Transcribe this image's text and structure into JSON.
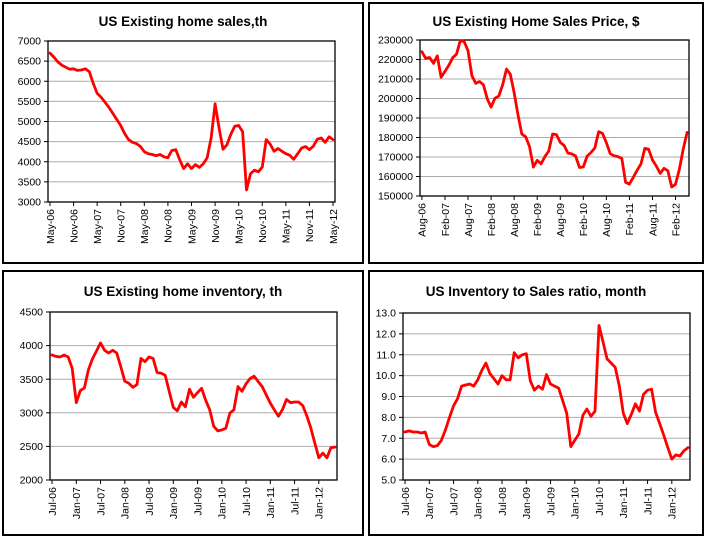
{
  "colors": {
    "series_line": "#ff0000",
    "gridline": "#ababab",
    "axis_frame": "#000000",
    "label_text": "#000000",
    "background": "#ffffff"
  },
  "chart_data": [
    {
      "id": "existing-home-sales",
      "type": "line",
      "title": "US Existing home sales,th",
      "frequency": "monthly",
      "x_range": [
        "May-06",
        "May-12"
      ],
      "x_tick_labels": [
        "May-06",
        "Nov-06",
        "May-07",
        "Nov-07",
        "May-08",
        "Nov-08",
        "May-09",
        "Nov-09",
        "May-10",
        "Nov-10",
        "May-11",
        "Nov-11",
        "May-12"
      ],
      "y_tick_labels": [
        "7000",
        "6500",
        "6000",
        "5500",
        "5000",
        "4500",
        "4000",
        "3500",
        "3000"
      ],
      "ylim": [
        3000,
        7000
      ],
      "legend": "none",
      "grid": "horizontal",
      "values": [
        6700,
        6600,
        6480,
        6400,
        6350,
        6300,
        6310,
        6270,
        6280,
        6310,
        6240,
        5950,
        5700,
        5600,
        5480,
        5350,
        5200,
        5050,
        4900,
        4700,
        4550,
        4480,
        4450,
        4380,
        4250,
        4200,
        4180,
        4150,
        4180,
        4120,
        4100,
        4280,
        4300,
        4050,
        3830,
        3950,
        3830,
        3930,
        3860,
        3950,
        4100,
        4600,
        5440,
        4850,
        4310,
        4420,
        4680,
        4880,
        4900,
        4750,
        3300,
        3700,
        3790,
        3750,
        3870,
        4550,
        4440,
        4260,
        4330,
        4260,
        4200,
        4160,
        4060,
        4200,
        4340,
        4380,
        4300,
        4390,
        4560,
        4590,
        4480,
        4620,
        4550
      ]
    },
    {
      "id": "existing-home-sales-price",
      "type": "line",
      "title": "US Existing Home Sales Price, $",
      "frequency": "monthly",
      "x_range": [
        "Aug-06",
        "May-12"
      ],
      "x_tick_labels": [
        "Aug-06",
        "Feb-07",
        "Aug-07",
        "Feb-08",
        "Aug-08",
        "Feb-09",
        "Aug-09",
        "Feb-10",
        "Aug-10",
        "Feb-11",
        "Aug-11",
        "Feb-12"
      ],
      "y_tick_labels": [
        "230000",
        "220000",
        "210000",
        "200000",
        "190000",
        "180000",
        "170000",
        "160000",
        "150000"
      ],
      "ylim": [
        150000,
        230000
      ],
      "legend": "none",
      "grid": "horizontal",
      "values": [
        224000,
        220500,
        221000,
        218000,
        221900,
        210900,
        213900,
        217000,
        220900,
        222700,
        229700,
        229200,
        224500,
        211700,
        207800,
        208700,
        207000,
        199800,
        195600,
        200100,
        201300,
        206900,
        215100,
        212400,
        203100,
        191600,
        181800,
        180300,
        175400,
        164800,
        168300,
        166500,
        170200,
        173000,
        181800,
        181500,
        177500,
        175900,
        172000,
        171600,
        170500,
        164600,
        164900,
        170500,
        172300,
        174600,
        183000,
        182100,
        177300,
        171700,
        170600,
        170200,
        169300,
        157000,
        156100,
        159600,
        163200,
        166500,
        174400,
        174000,
        168400,
        165400,
        161600,
        164200,
        162900,
        154600,
        156000,
        163800,
        174000,
        182600
      ]
    },
    {
      "id": "existing-home-inventory",
      "type": "line",
      "title": "US Existing home inventory, th",
      "frequency": "monthly",
      "x_range": [
        "Jul-06",
        "May-12"
      ],
      "x_tick_labels": [
        "Jul-06",
        "Jan-07",
        "Jul-07",
        "Jan-08",
        "Jul-08",
        "Jan-09",
        "Jul-09",
        "Jan-10",
        "Jul-10",
        "Jan-11",
        "Jul-11",
        "Jan-12"
      ],
      "y_tick_labels": [
        "4500",
        "4000",
        "3500",
        "3000",
        "2500",
        "2000"
      ],
      "ylim": [
        2000,
        4500
      ],
      "legend": "none",
      "grid": "horizontal",
      "values": [
        3860,
        3840,
        3830,
        3860,
        3830,
        3660,
        3150,
        3330,
        3370,
        3640,
        3800,
        3920,
        4040,
        3930,
        3890,
        3930,
        3890,
        3690,
        3470,
        3440,
        3380,
        3420,
        3810,
        3760,
        3830,
        3810,
        3600,
        3590,
        3560,
        3320,
        3080,
        3030,
        3160,
        3090,
        3350,
        3230,
        3300,
        3365,
        3190,
        3045,
        2800,
        2730,
        2745,
        2770,
        2995,
        3045,
        3390,
        3320,
        3430,
        3510,
        3545,
        3465,
        3390,
        3265,
        3145,
        3045,
        2950,
        3045,
        3200,
        3150,
        3160,
        3160,
        3110,
        2960,
        2780,
        2550,
        2330,
        2400,
        2330,
        2480,
        2490
      ]
    },
    {
      "id": "inventory-to-sales-ratio",
      "type": "line",
      "title": "US Inventory to Sales ratio, month",
      "frequency": "monthly",
      "x_range": [
        "Jul-06",
        "May-12"
      ],
      "x_tick_labels": [
        "Jul-06",
        "Jan-07",
        "Jul-07",
        "Jan-08",
        "Jul-08",
        "Jan-09",
        "Jul-09",
        "Jan-10",
        "Jul-10",
        "Jan-11",
        "Jul-11",
        "Jan-12"
      ],
      "y_tick_labels": [
        "13.0",
        "12.0",
        "11.0",
        "10.0",
        "9.0",
        "8.0",
        "7.0",
        "6.0",
        "5.0"
      ],
      "ylim": [
        5.0,
        13.0
      ],
      "legend": "none",
      "grid": "horizontal",
      "values": [
        7.3,
        7.35,
        7.3,
        7.3,
        7.25,
        7.3,
        6.7,
        6.6,
        6.65,
        6.9,
        7.4,
        8.0,
        8.55,
        8.9,
        9.5,
        9.55,
        9.6,
        9.5,
        9.8,
        10.25,
        10.6,
        10.1,
        9.85,
        9.6,
        10.0,
        9.8,
        9.8,
        11.1,
        10.85,
        11.0,
        11.05,
        9.75,
        9.3,
        9.5,
        9.35,
        10.05,
        9.6,
        9.5,
        9.4,
        8.8,
        8.2,
        6.6,
        6.9,
        7.2,
        8.1,
        8.4,
        8.05,
        8.3,
        12.4,
        11.6,
        10.8,
        10.6,
        10.4,
        9.5,
        8.2,
        7.7,
        8.15,
        8.65,
        8.3,
        9.1,
        9.3,
        9.35,
        8.25,
        7.7,
        7.15,
        6.55,
        6.0,
        6.2,
        6.15,
        6.4,
        6.55
      ]
    }
  ]
}
